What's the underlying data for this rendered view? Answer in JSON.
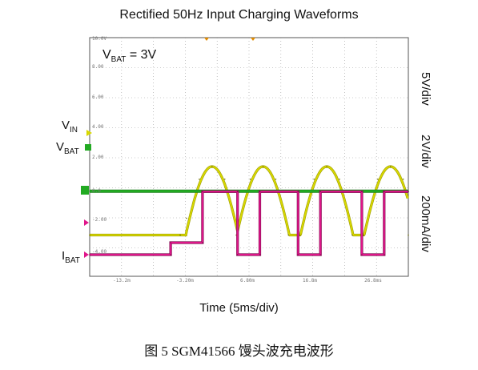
{
  "title": "Rectified 50Hz Input Charging Waveforms",
  "annotation": {
    "prefix": "V",
    "sub": "BAT",
    "suffix": " = 3V"
  },
  "channels": [
    {
      "label": "V",
      "sub": "IN",
      "scale": "5V/div",
      "color": "#d8d800"
    },
    {
      "label": "V",
      "sub": "BAT",
      "scale": "2V/div",
      "color": "#22aa22"
    },
    {
      "label": "I",
      "sub": "BAT",
      "scale": "200mA/div",
      "color": "#e0158a"
    }
  ],
  "xlabel": "Time (5ms/div)",
  "caption": "图 5 SGM41566 馒头波充电波形",
  "screen_labels": {
    "top_ticks": [
      "10.0V",
      "8.00",
      "6.00",
      "4.00",
      "2.00"
    ],
    "bottom_ticks": [
      "0.0",
      "-2.00",
      "-4.00"
    ],
    "x_ticks": [
      "-13.2m",
      "-3.20m",
      "6.80m",
      "16.8m",
      "26.8ms"
    ]
  },
  "chart_data": {
    "type": "line",
    "title": "Rectified 50Hz Input Charging Waveforms",
    "xlabel": "Time (5ms/div)",
    "x_unit": "ms",
    "x_divisions": 10,
    "xlim": [
      -18.2,
      31.8
    ],
    "series": [
      {
        "name": "VIN",
        "unit": "V",
        "div": 5,
        "x": [
          -18.2,
          -4.0,
          -3.0,
          -1.0,
          1.0,
          3.0,
          4.8,
          7.0,
          9.0,
          11.0,
          13.0,
          14.8,
          17.0,
          19.0,
          21.0,
          23.0,
          24.8,
          27.0,
          29.0,
          31.0,
          31.8
        ],
        "values": [
          4.2,
          4.2,
          7.0,
          13.5,
          15.6,
          13.5,
          4.2,
          13.5,
          15.6,
          13.5,
          4.2,
          4.2,
          13.5,
          15.6,
          13.5,
          4.2,
          4.2,
          13.5,
          15.6,
          13.5,
          4.2
        ]
      },
      {
        "name": "VBAT",
        "unit": "V",
        "div": 2,
        "x": [
          -18.2,
          31.8
        ],
        "values": [
          3.0,
          3.0
        ]
      },
      {
        "name": "IBAT",
        "unit": "mA",
        "div": 200,
        "x": [
          -18.2,
          -5.5,
          -5.5,
          -0.5,
          -0.5,
          5.0,
          5.0,
          8.5,
          8.5,
          14.5,
          14.5,
          18.0,
          18.0,
          24.5,
          24.5,
          28.0,
          28.0,
          31.8
        ],
        "values": [
          0,
          0,
          80,
          80,
          420,
          420,
          0,
          0,
          420,
          420,
          0,
          0,
          420,
          420,
          0,
          0,
          420,
          420
        ]
      }
    ]
  }
}
